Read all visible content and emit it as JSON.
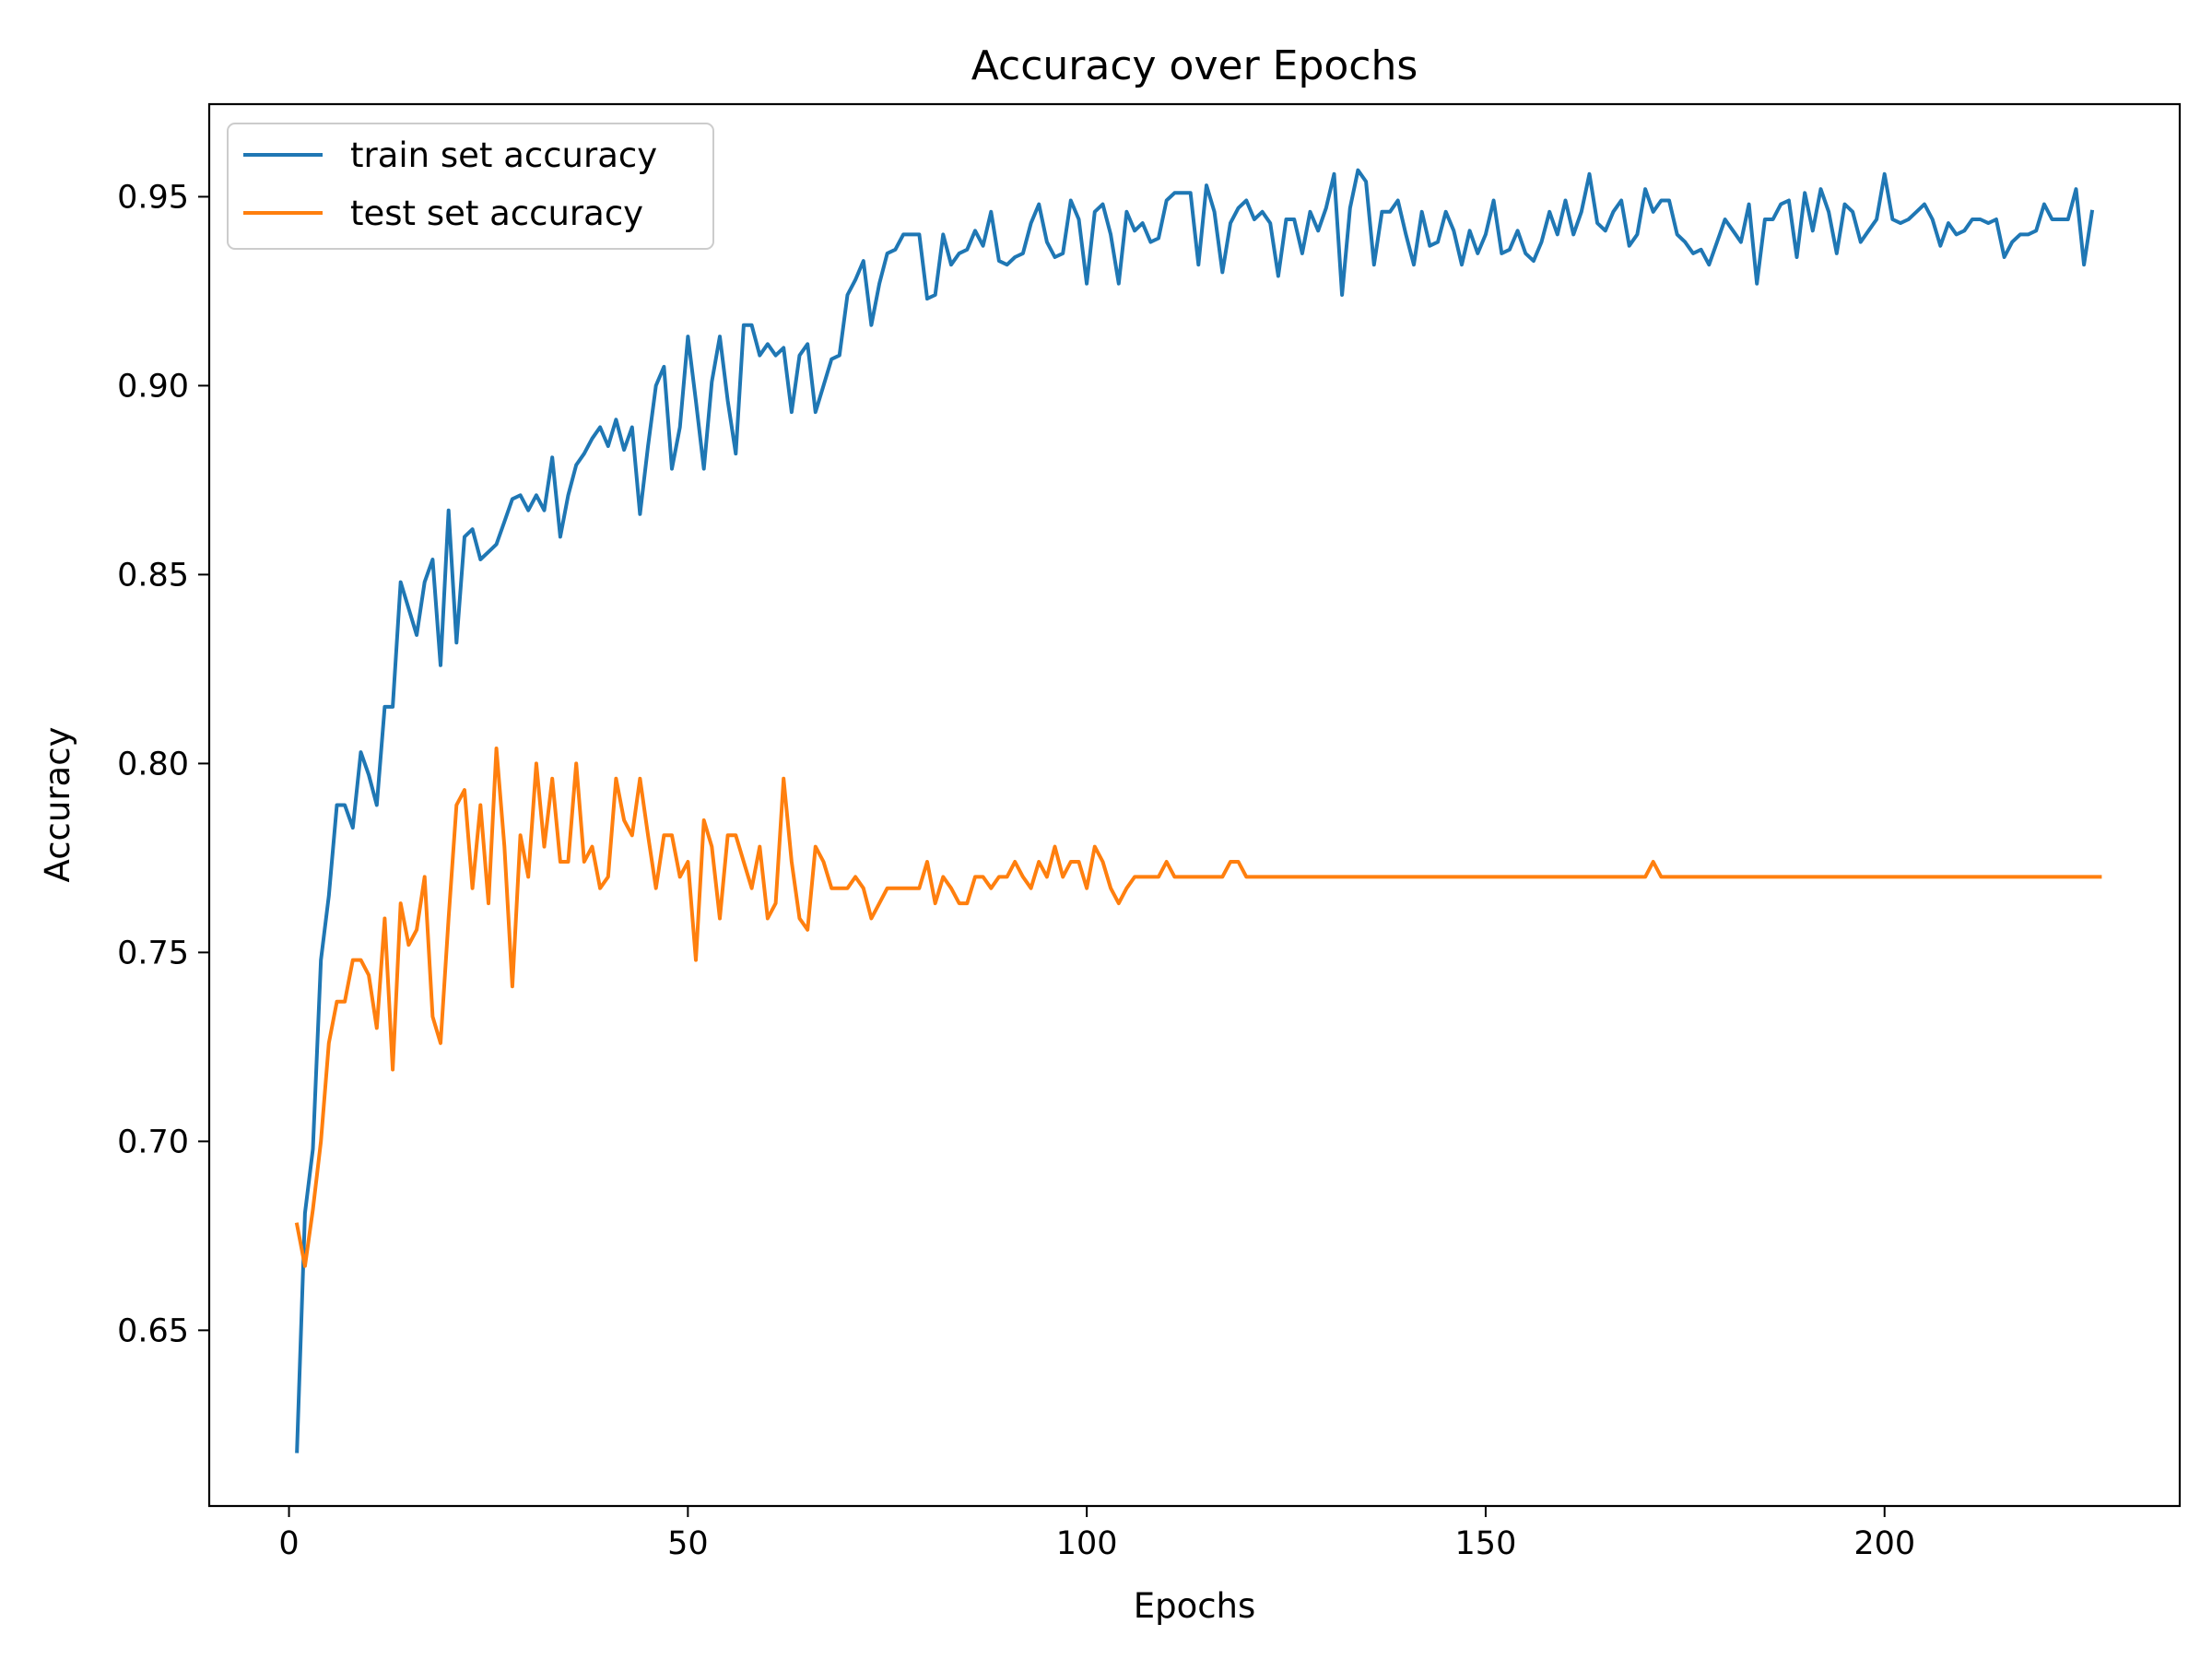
{
  "chart_data": {
    "type": "line",
    "title": "Accuracy over Epochs",
    "xlabel": "Epochs",
    "ylabel": "Accuracy",
    "xlim": [
      -10,
      237
    ],
    "ylim": [
      0.6035,
      0.9745
    ],
    "xticks": [
      0,
      50,
      100,
      150,
      200
    ],
    "yticks": [
      0.65,
      0.7,
      0.75,
      0.8,
      0.85,
      0.9,
      0.95
    ],
    "xtick_labels": [
      "0",
      "50",
      "100",
      "150",
      "200"
    ],
    "ytick_labels": [
      "0.65",
      "0.70",
      "0.75",
      "0.80",
      "0.85",
      "0.90",
      "0.95"
    ],
    "grid": false,
    "legend_position": "top-left",
    "x_start": 1,
    "series": [
      {
        "name": "train set accuracy",
        "color": "#1f77b4",
        "values": [
          0.618,
          0.681,
          0.698,
          0.748,
          0.765,
          0.789,
          0.789,
          0.783,
          0.803,
          0.797,
          0.789,
          0.815,
          0.815,
          0.848,
          0.841,
          0.834,
          0.848,
          0.854,
          0.826,
          0.867,
          0.832,
          0.86,
          0.862,
          0.854,
          0.856,
          0.858,
          0.864,
          0.87,
          0.871,
          0.867,
          0.871,
          0.867,
          0.881,
          0.86,
          0.871,
          0.879,
          0.882,
          0.886,
          0.889,
          0.884,
          0.891,
          0.883,
          0.889,
          0.866,
          0.884,
          0.9,
          0.905,
          0.878,
          0.889,
          0.913,
          0.896,
          0.878,
          0.901,
          0.913,
          0.896,
          0.882,
          0.916,
          0.916,
          0.908,
          0.911,
          0.908,
          0.91,
          0.893,
          0.908,
          0.911,
          0.893,
          0.9,
          0.907,
          0.908,
          0.924,
          0.928,
          0.933,
          0.916,
          0.927,
          0.935,
          0.936,
          0.94,
          0.94,
          0.94,
          0.923,
          0.924,
          0.94,
          0.932,
          0.935,
          0.936,
          0.941,
          0.937,
          0.946,
          0.933,
          0.932,
          0.934,
          0.935,
          0.943,
          0.948,
          0.938,
          0.934,
          0.935,
          0.949,
          0.944,
          0.927,
          0.946,
          0.948,
          0.94,
          0.927,
          0.946,
          0.941,
          0.943,
          0.938,
          0.939,
          0.949,
          0.951,
          0.951,
          0.951,
          0.932,
          0.953,
          0.946,
          0.93,
          0.943,
          0.947,
          0.949,
          0.944,
          0.946,
          0.943,
          0.929,
          0.944,
          0.944,
          0.935,
          0.946,
          0.941,
          0.947,
          0.956,
          0.924,
          0.947,
          0.957,
          0.954,
          0.932,
          0.946,
          0.946,
          0.949,
          0.94,
          0.932,
          0.946,
          0.937,
          0.938,
          0.946,
          0.941,
          0.932,
          0.941,
          0.935,
          0.94,
          0.949,
          0.935,
          0.936,
          0.941,
          0.935,
          0.933,
          0.938,
          0.946,
          0.94,
          0.949,
          0.94,
          0.946,
          0.956,
          0.943,
          0.941,
          0.946,
          0.949,
          0.937,
          0.94,
          0.952,
          0.946,
          0.949,
          0.949,
          0.94,
          0.938,
          0.935,
          0.936,
          0.932,
          0.938,
          0.944,
          0.941,
          0.938,
          0.948,
          0.927,
          0.944,
          0.944,
          0.948,
          0.949,
          0.934,
          0.951,
          0.941,
          0.952,
          0.946,
          0.935,
          0.948,
          0.946,
          0.938,
          0.941,
          0.944,
          0.956,
          0.944,
          0.943,
          0.944,
          0.946,
          0.948,
          0.944,
          0.937,
          0.943,
          0.94,
          0.941,
          0.944,
          0.944,
          0.943,
          0.944,
          0.934,
          0.938,
          0.94,
          0.94,
          0.941,
          0.948,
          0.944,
          0.944,
          0.944,
          0.952,
          0.932,
          0.946
        ]
      },
      {
        "name": "test set accuracy",
        "color": "#ff7f0e",
        "values": [
          0.678,
          0.667,
          0.682,
          0.7,
          0.726,
          0.737,
          0.737,
          0.748,
          0.748,
          0.744,
          0.73,
          0.759,
          0.719,
          0.763,
          0.752,
          0.756,
          0.77,
          0.733,
          0.726,
          0.759,
          0.789,
          0.793,
          0.767,
          0.789,
          0.763,
          0.804,
          0.778,
          0.741,
          0.781,
          0.77,
          0.8,
          0.778,
          0.796,
          0.774,
          0.774,
          0.8,
          0.774,
          0.778,
          0.767,
          0.77,
          0.796,
          0.785,
          0.781,
          0.796,
          0.781,
          0.767,
          0.781,
          0.781,
          0.77,
          0.774,
          0.748,
          0.785,
          0.778,
          0.759,
          0.781,
          0.781,
          0.774,
          0.767,
          0.778,
          0.759,
          0.763,
          0.796,
          0.774,
          0.759,
          0.756,
          0.778,
          0.774,
          0.767,
          0.767,
          0.767,
          0.77,
          0.767,
          0.759,
          0.763,
          0.767,
          0.767,
          0.767,
          0.767,
          0.767,
          0.774,
          0.763,
          0.77,
          0.767,
          0.763,
          0.763,
          0.77,
          0.77,
          0.767,
          0.77,
          0.77,
          0.774,
          0.77,
          0.767,
          0.774,
          0.77,
          0.778,
          0.77,
          0.774,
          0.774,
          0.767,
          0.778,
          0.774,
          0.767,
          0.763,
          0.767,
          0.77,
          0.77,
          0.77,
          0.77,
          0.774,
          0.77,
          0.77,
          0.77,
          0.77,
          0.77,
          0.77,
          0.77,
          0.774,
          0.774,
          0.77,
          0.77,
          0.77,
          0.77,
          0.77,
          0.77,
          0.77,
          0.77,
          0.77,
          0.77,
          0.77,
          0.77,
          0.77,
          0.77,
          0.77,
          0.77,
          0.77,
          0.77,
          0.77,
          0.77,
          0.77,
          0.77,
          0.77,
          0.77,
          0.77,
          0.77,
          0.77,
          0.77,
          0.77,
          0.77,
          0.77,
          0.77,
          0.77,
          0.77,
          0.77,
          0.77,
          0.77,
          0.77,
          0.77,
          0.77,
          0.77,
          0.77,
          0.77,
          0.77,
          0.77,
          0.77,
          0.77,
          0.77,
          0.77,
          0.77,
          0.77,
          0.774,
          0.77,
          0.77,
          0.77,
          0.77,
          0.77,
          0.77,
          0.77,
          0.77,
          0.77,
          0.77,
          0.77,
          0.77,
          0.77,
          0.77,
          0.77,
          0.77,
          0.77,
          0.77,
          0.77,
          0.77,
          0.77,
          0.77,
          0.77,
          0.77,
          0.77,
          0.77,
          0.77,
          0.77,
          0.77,
          0.77,
          0.77,
          0.77,
          0.77,
          0.77,
          0.77,
          0.77,
          0.77,
          0.77,
          0.77,
          0.77,
          0.77,
          0.77,
          0.77,
          0.77,
          0.77,
          0.77,
          0.77,
          0.77,
          0.77,
          0.77,
          0.77,
          0.77,
          0.77,
          0.77,
          0.77,
          0.77
        ]
      }
    ]
  }
}
